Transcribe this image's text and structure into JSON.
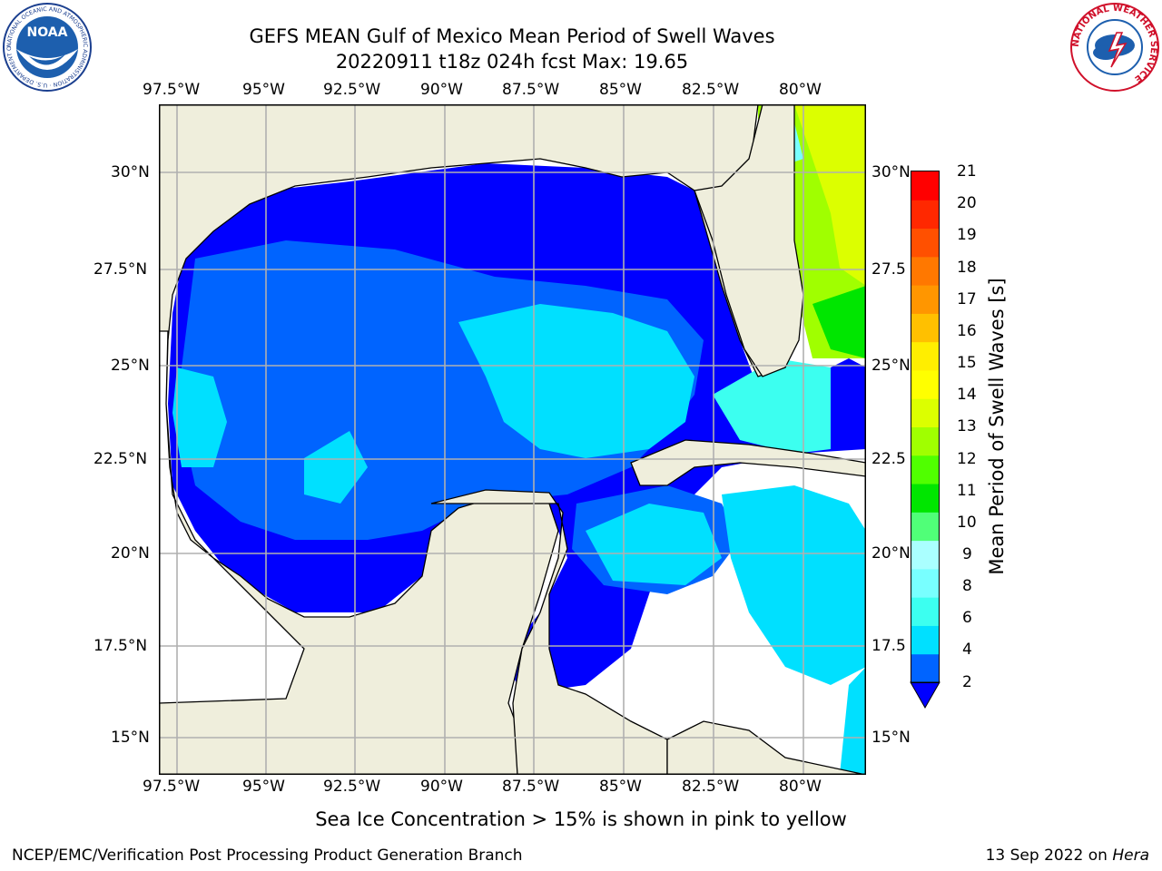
{
  "header": {
    "title_line1": "GEFS MEAN Gulf of Mexico Mean Period of Swell Waves",
    "title_line2": "20220911 t18z 024h fcst   Max: 19.65"
  },
  "logos": {
    "left_logo_text": "NOAA",
    "left_ring_text": "NATIONAL OCEANIC AND ATMOSPHERIC ADMINISTRATION · U.S. DEPARTMENT OF COMMERCE",
    "right_ring_text": "NATIONAL WEATHER SERVICE"
  },
  "map": {
    "lon_ticks": [
      "97.5°W",
      "95°W",
      "92.5°W",
      "90°W",
      "87.5°W",
      "85°W",
      "82.5°W",
      "80°W"
    ],
    "lat_ticks_left": [
      "30°N",
      "27.5°N",
      "25°N",
      "22.5°N",
      "20°N",
      "17.5°N",
      "15°N"
    ],
    "lat_ticks_right": [
      "30°N",
      "27.5",
      "25°N",
      "22.5",
      "20°N",
      "17.5",
      "15°N"
    ],
    "land_color": "#efeedc",
    "grid": true
  },
  "colorbar": {
    "label": "Mean Period of Swell Waves [s]",
    "ticks": [
      "21",
      "20",
      "19",
      "18",
      "17",
      "16",
      "15",
      "14",
      "13",
      "12",
      "11",
      "10",
      "9",
      "8",
      "6",
      "4",
      "2"
    ],
    "colors_bottom_to_top": [
      "#0064ff",
      "#00e0ff",
      "#3cfff0",
      "#78ffff",
      "#aaffff",
      "#50ff78",
      "#00e600",
      "#50ff00",
      "#a0ff00",
      "#dcff00",
      "#ffff00",
      "#ffee00",
      "#ffc000",
      "#ff9600",
      "#ff7800",
      "#ff5000",
      "#ff2800",
      "#ff0000"
    ],
    "extend_color": "#0000ff"
  },
  "footer": {
    "note": "Sea Ice Concentration > 15% is shown in pink to yellow",
    "credit": "NCEP/EMC/Verification Post Processing Product Generation Branch",
    "date_prefix": "13 Sep 2022 on ",
    "machine": "Hera"
  }
}
